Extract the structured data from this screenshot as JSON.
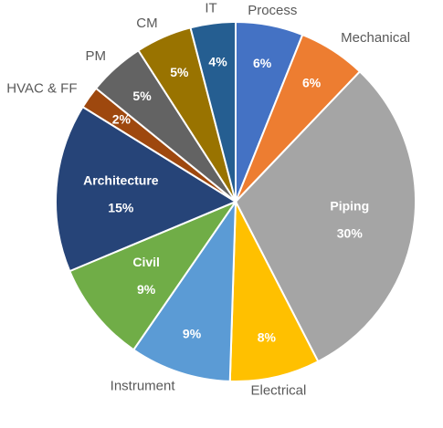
{
  "chart_data": {
    "type": "pie",
    "title": "",
    "categories": [
      "Process",
      "Mechanical",
      "Piping",
      "Electrical",
      "Instrument",
      "Civil",
      "Architecture",
      "HVAC & FF",
      "PM",
      "CM",
      "IT"
    ],
    "values": [
      6,
      6,
      30,
      8,
      9,
      9,
      15,
      2,
      5,
      5,
      4
    ],
    "data_labels": [
      "6%",
      "6%",
      "30%",
      "8%",
      "9%",
      "9%",
      "15%",
      "2%",
      "5%",
      "5%",
      "4%"
    ],
    "colors": [
      "#4472C4",
      "#ED7D31",
      "#A5A5A5",
      "#FFC000",
      "#5B9BD5",
      "#70AD47",
      "#264478",
      "#9E480E",
      "#636363",
      "#997300",
      "#255E91"
    ],
    "label_placement": [
      "outside",
      "outside",
      "inside",
      "outside",
      "outside",
      "inside",
      "inside",
      "outside",
      "outside",
      "outside",
      "outside"
    ],
    "start_angle_deg": 0,
    "direction": "clockwise",
    "legend": "none"
  }
}
